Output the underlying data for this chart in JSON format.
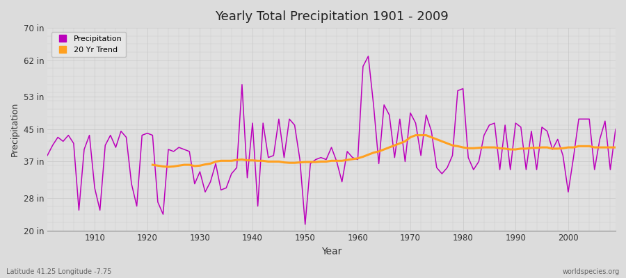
{
  "title": "Yearly Total Precipitation 1901 - 2009",
  "xlabel": "Year",
  "ylabel": "Precipitation",
  "xlabel_bottom": "Latitude 41.25 Longitude -7.75",
  "watermark": "worldspecies.org",
  "bg_color": "#dcdcdc",
  "plot_bg_color": "#e0e0e0",
  "grid_color": "#c8c8c8",
  "precip_color": "#bb00bb",
  "trend_color": "#ffa020",
  "ylim": [
    20,
    70
  ],
  "yticks_labels": [
    "20 in",
    "28 in",
    "37 in",
    "45 in",
    "53 in",
    "62 in",
    "70 in"
  ],
  "yticks_values": [
    20,
    28,
    37,
    45,
    53,
    62,
    70
  ],
  "years": [
    1901,
    1902,
    1903,
    1904,
    1905,
    1906,
    1907,
    1908,
    1909,
    1910,
    1911,
    1912,
    1913,
    1914,
    1915,
    1916,
    1917,
    1918,
    1919,
    1920,
    1921,
    1922,
    1923,
    1924,
    1925,
    1926,
    1927,
    1928,
    1929,
    1930,
    1931,
    1932,
    1933,
    1934,
    1935,
    1936,
    1937,
    1938,
    1939,
    1940,
    1941,
    1942,
    1943,
    1944,
    1945,
    1946,
    1947,
    1948,
    1949,
    1950,
    1951,
    1952,
    1953,
    1954,
    1955,
    1956,
    1957,
    1958,
    1959,
    1960,
    1961,
    1962,
    1963,
    1964,
    1965,
    1966,
    1967,
    1968,
    1969,
    1970,
    1971,
    1972,
    1973,
    1974,
    1975,
    1976,
    1977,
    1978,
    1979,
    1980,
    1981,
    1982,
    1983,
    1984,
    1985,
    1986,
    1987,
    1988,
    1989,
    1990,
    1991,
    1992,
    1993,
    1994,
    1995,
    1996,
    1997,
    1998,
    1999,
    2000,
    2001,
    2002,
    2003,
    2004,
    2005,
    2006,
    2007,
    2008,
    2009
  ],
  "precip": [
    38.5,
    41.0,
    43.0,
    42.0,
    43.5,
    41.5,
    25.0,
    40.0,
    43.5,
    30.5,
    25.0,
    41.0,
    43.5,
    40.5,
    44.5,
    43.0,
    31.5,
    26.0,
    43.5,
    44.0,
    43.5,
    27.0,
    24.0,
    40.0,
    39.5,
    40.5,
    40.0,
    39.5,
    31.5,
    34.5,
    29.5,
    32.0,
    36.5,
    30.0,
    30.5,
    34.0,
    35.5,
    56.0,
    33.0,
    46.5,
    26.0,
    46.5,
    38.0,
    38.5,
    47.5,
    38.0,
    47.5,
    46.0,
    37.5,
    21.5,
    36.5,
    37.5,
    38.0,
    37.5,
    40.5,
    37.0,
    32.0,
    39.5,
    38.0,
    37.5,
    60.5,
    63.0,
    51.0,
    36.5,
    51.0,
    48.5,
    38.0,
    47.5,
    37.0,
    49.0,
    46.5,
    38.5,
    48.5,
    44.5,
    35.5,
    34.0,
    35.5,
    38.5,
    54.5,
    55.0,
    38.0,
    35.0,
    37.0,
    43.5,
    46.0,
    46.5,
    35.0,
    46.0,
    35.0,
    46.5,
    45.5,
    35.0,
    44.5,
    35.0,
    45.5,
    44.5,
    40.0,
    42.5,
    38.5,
    29.5,
    38.0,
    47.5,
    47.5,
    47.5,
    35.0,
    42.5,
    47.0,
    35.0,
    45.0
  ],
  "trend": [
    null,
    null,
    null,
    null,
    null,
    null,
    null,
    null,
    null,
    null,
    null,
    null,
    null,
    null,
    null,
    null,
    null,
    null,
    null,
    null,
    36.2,
    36.0,
    35.8,
    35.7,
    35.8,
    36.0,
    36.2,
    36.2,
    35.9,
    36.0,
    36.3,
    36.5,
    37.0,
    37.2,
    37.2,
    37.2,
    37.4,
    37.5,
    37.3,
    37.3,
    37.2,
    37.2,
    37.0,
    37.0,
    37.0,
    36.8,
    36.7,
    36.7,
    36.8,
    36.9,
    36.9,
    36.9,
    37.0,
    37.0,
    37.2,
    37.2,
    37.2,
    37.4,
    37.6,
    37.8,
    38.2,
    38.7,
    39.2,
    39.5,
    40.0,
    40.5,
    41.0,
    41.5,
    42.0,
    43.0,
    43.5,
    43.5,
    43.5,
    43.0,
    42.5,
    42.0,
    41.5,
    41.0,
    40.8,
    40.5,
    40.3,
    40.3,
    40.4,
    40.5,
    40.5,
    40.5,
    40.3,
    40.2,
    40.0,
    40.0,
    40.2,
    40.2,
    40.4,
    40.4,
    40.5,
    40.5,
    40.2,
    40.2,
    40.3,
    40.5,
    40.5,
    40.8,
    40.8,
    40.8,
    40.5,
    40.5,
    40.5,
    40.5,
    40.5
  ]
}
